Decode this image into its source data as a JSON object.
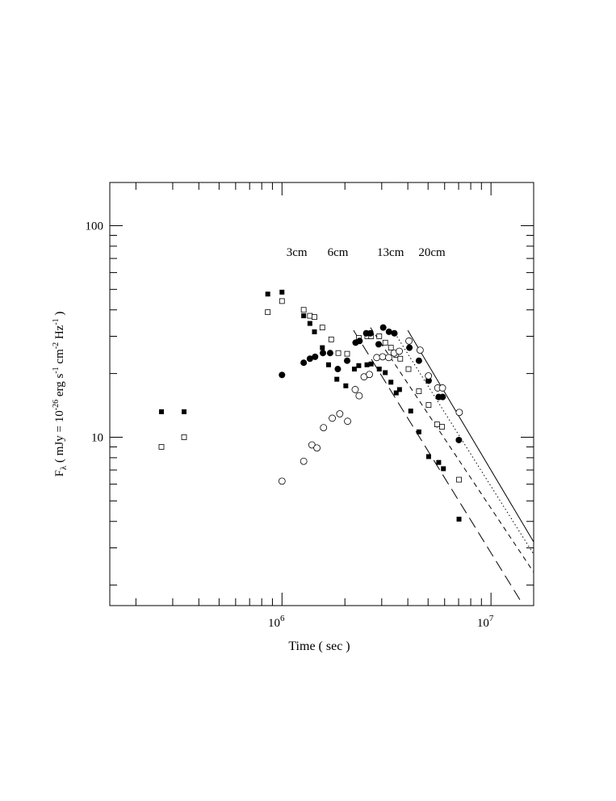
{
  "chart_data": {
    "type": "scatter",
    "xlabel": "Time ( sec )",
    "ylabel": "F_λ ( mJy = 10^-26 erg s^-1 cm^-2 Hz^-1 )",
    "ylabel_parts": {
      "main": "F",
      "sub": "λ",
      "p1": " ( mJy = 10",
      "e1": "-26",
      "p2": " erg s",
      "e2": "-1",
      "p3": " cm",
      "e3": "-2",
      "p4": " Hz",
      "e4": "-1",
      "p5": " )"
    },
    "x_scale": "log",
    "y_scale": "log",
    "xlim": [
      150000,
      16000000
    ],
    "ylim": [
      1.6,
      160
    ],
    "x_ticklabels": [
      {
        "value": 1000000,
        "base": "10",
        "exp": "6"
      },
      {
        "value": 10000000,
        "base": "10",
        "exp": "7"
      }
    ],
    "y_ticklabels": [
      {
        "value": 10,
        "label": "10"
      },
      {
        "value": 100,
        "label": "100"
      }
    ],
    "band_labels": [
      {
        "text": "3cm",
        "x": 1050000,
        "y": 75
      },
      {
        "text": "6cm",
        "x": 1650000,
        "y": 75
      },
      {
        "text": "13cm",
        "x": 2850000,
        "y": 75
      },
      {
        "text": "20cm",
        "x": 4500000,
        "y": 75
      }
    ],
    "series": [
      {
        "marker": "filled-square",
        "points": [
          [
            265000,
            13.2
          ],
          [
            340000,
            13.2
          ],
          [
            855000,
            47.5
          ],
          [
            1000000,
            48.5
          ],
          [
            1270000,
            37.5
          ],
          [
            1360000,
            34.5
          ],
          [
            1430000,
            31.5
          ],
          [
            1560000,
            26.5
          ],
          [
            1670000,
            22.0
          ],
          [
            1830000,
            18.8
          ],
          [
            2020000,
            17.5
          ],
          [
            2220000,
            21.0
          ],
          [
            2330000,
            21.8
          ],
          [
            2550000,
            22.0
          ],
          [
            2670000,
            22.2
          ],
          [
            2920000,
            21.0
          ],
          [
            3120000,
            20.2
          ],
          [
            3320000,
            18.2
          ],
          [
            3520000,
            16.2
          ],
          [
            3650000,
            16.8
          ],
          [
            4130000,
            13.3
          ],
          [
            4520000,
            10.6
          ],
          [
            5030000,
            8.1
          ],
          [
            5620000,
            7.6
          ],
          [
            5920000,
            7.1
          ],
          [
            7030000,
            4.1
          ]
        ]
      },
      {
        "marker": "open-square",
        "points": [
          [
            265000,
            9.0
          ],
          [
            340000,
            10.0
          ],
          [
            855000,
            39.0
          ],
          [
            1000000,
            44.0
          ],
          [
            1270000,
            40.0
          ],
          [
            1360000,
            37.5
          ],
          [
            1430000,
            37.0
          ],
          [
            1560000,
            33.0
          ],
          [
            1720000,
            29.0
          ],
          [
            1860000,
            25.0
          ],
          [
            2050000,
            24.8
          ],
          [
            2330000,
            29.5
          ],
          [
            2560000,
            30.0
          ],
          [
            2670000,
            30.0
          ],
          [
            2920000,
            30.0
          ],
          [
            3120000,
            28.0
          ],
          [
            3320000,
            26.5
          ],
          [
            3520000,
            24.5
          ],
          [
            3680000,
            23.5
          ],
          [
            4030000,
            21.0
          ],
          [
            4520000,
            16.5
          ],
          [
            5030000,
            14.2
          ],
          [
            5520000,
            11.5
          ],
          [
            5830000,
            11.2
          ],
          [
            7030000,
            6.3
          ]
        ]
      },
      {
        "marker": "filled-circle",
        "points": [
          [
            1000000,
            19.7
          ],
          [
            1270000,
            22.5
          ],
          [
            1360000,
            23.5
          ],
          [
            1440000,
            24.0
          ],
          [
            1570000,
            25.0
          ],
          [
            1700000,
            25.0
          ],
          [
            1850000,
            21.0
          ],
          [
            2050000,
            23.0
          ],
          [
            2250000,
            28.0
          ],
          [
            2350000,
            28.5
          ],
          [
            2530000,
            31.0
          ],
          [
            2650000,
            31.0
          ],
          [
            2900000,
            27.5
          ],
          [
            3050000,
            33.0
          ],
          [
            3250000,
            31.5
          ],
          [
            3450000,
            31.0
          ],
          [
            4070000,
            26.5
          ],
          [
            4520000,
            23.0
          ],
          [
            5030000,
            18.5
          ],
          [
            5620000,
            15.5
          ],
          [
            5870000,
            15.5
          ],
          [
            7020000,
            9.7
          ]
        ]
      },
      {
        "marker": "open-circle",
        "points": [
          [
            1000000,
            6.2
          ],
          [
            1270000,
            7.7
          ],
          [
            1390000,
            9.2
          ],
          [
            1470000,
            8.9
          ],
          [
            1580000,
            11.1
          ],
          [
            1740000,
            12.3
          ],
          [
            1890000,
            12.9
          ],
          [
            2060000,
            11.9
          ],
          [
            2240000,
            16.8
          ],
          [
            2340000,
            15.7
          ],
          [
            2470000,
            19.3
          ],
          [
            2620000,
            19.8
          ],
          [
            2840000,
            23.8
          ],
          [
            3030000,
            24.0
          ],
          [
            3240000,
            23.8
          ],
          [
            3440000,
            25.0
          ],
          [
            3640000,
            25.5
          ],
          [
            4050000,
            28.5
          ],
          [
            4580000,
            25.8
          ],
          [
            5020000,
            19.5
          ],
          [
            5560000,
            17.1
          ],
          [
            5860000,
            17.1
          ],
          [
            7050000,
            13.1
          ]
        ]
      }
    ],
    "fit_lines": [
      {
        "style": "long-dash",
        "x": [
          2200000,
          14200000
        ],
        "y": [
          32.0,
          1.62
        ]
      },
      {
        "style": "short-dash",
        "x": [
          2650000,
          16000000
        ],
        "y": [
          33.0,
          2.3
        ]
      },
      {
        "style": "dotted",
        "x": [
          3400000,
          16000000
        ],
        "y": [
          32.0,
          2.8
        ]
      },
      {
        "style": "solid",
        "x": [
          4000000,
          16000000
        ],
        "y": [
          32.0,
          3.2
        ]
      }
    ]
  }
}
